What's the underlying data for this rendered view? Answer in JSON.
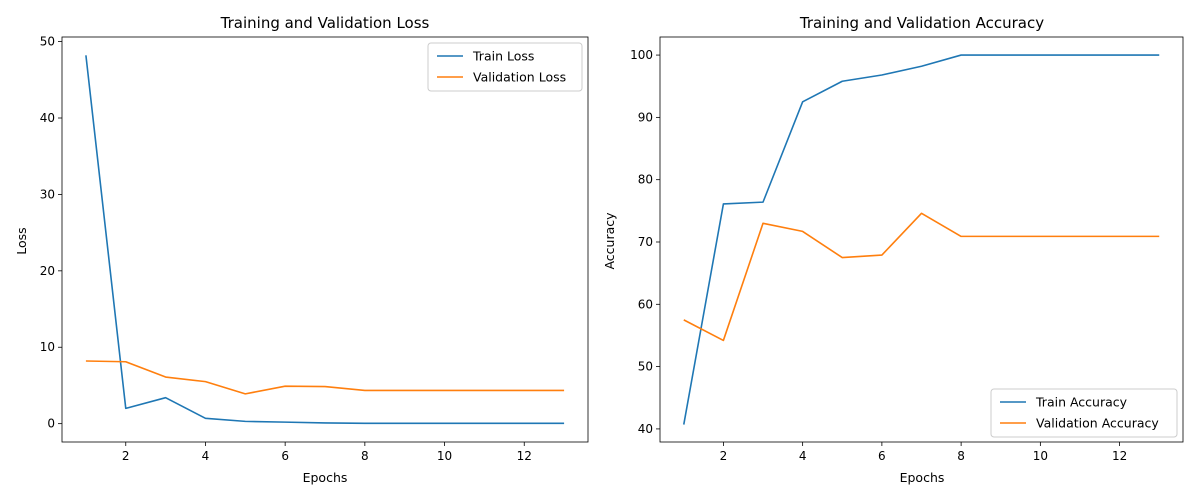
{
  "chart_data": [
    {
      "type": "line",
      "title": "Training and Validation Loss",
      "xlabel": "Epochs",
      "ylabel": "Loss",
      "x": [
        1,
        2,
        3,
        4,
        5,
        6,
        7,
        8,
        9,
        10,
        11,
        12,
        13
      ],
      "xlim": [
        0.4,
        13.6
      ],
      "ylim": [
        -2.4,
        50.6
      ],
      "xticks": [
        2,
        4,
        6,
        8,
        10,
        12
      ],
      "yticks": [
        0,
        10,
        20,
        30,
        40,
        50
      ],
      "grid": false,
      "legend": "upper-right",
      "series": [
        {
          "name": "Train Loss",
          "color": "#1f77b4",
          "values": [
            48.2,
            2.0,
            3.4,
            0.7,
            0.3,
            0.2,
            0.1,
            0.05,
            0.04,
            0.04,
            0.04,
            0.04,
            0.04
          ]
        },
        {
          "name": "Validation Loss",
          "color": "#ff7f0e",
          "values": [
            8.2,
            8.1,
            6.1,
            5.5,
            3.9,
            4.9,
            4.85,
            4.35,
            4.35,
            4.35,
            4.35,
            4.35,
            4.35
          ]
        }
      ]
    },
    {
      "type": "line",
      "title": "Training and Validation Accuracy",
      "xlabel": "Epochs",
      "ylabel": "Accuracy",
      "x": [
        1,
        2,
        3,
        4,
        5,
        6,
        7,
        8,
        9,
        10,
        11,
        12,
        13
      ],
      "xlim": [
        0.4,
        13.6
      ],
      "ylim": [
        37.9,
        102.9
      ],
      "xticks": [
        2,
        4,
        6,
        8,
        10,
        12
      ],
      "yticks": [
        40,
        50,
        60,
        70,
        80,
        90,
        100
      ],
      "grid": false,
      "legend": "lower-right",
      "series": [
        {
          "name": "Train Accuracy",
          "color": "#1f77b4",
          "values": [
            40.7,
            76.1,
            76.4,
            92.5,
            95.8,
            96.8,
            98.2,
            100,
            100,
            100,
            100,
            100,
            100
          ]
        },
        {
          "name": "Validation Accuracy",
          "color": "#ff7f0e",
          "values": [
            57.5,
            54.2,
            73.0,
            71.7,
            67.5,
            67.9,
            74.6,
            70.9,
            70.9,
            70.9,
            70.9,
            70.9,
            70.9
          ]
        }
      ]
    }
  ]
}
